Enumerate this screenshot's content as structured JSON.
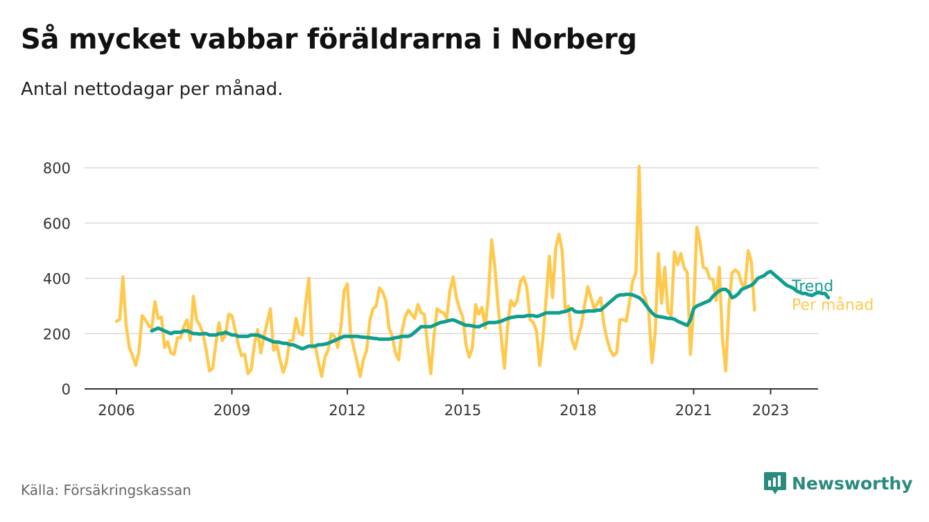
{
  "title": "Så mycket vabbar föräldrarna i Norberg",
  "subtitle": "Antal nettodagar per månad.",
  "source": "Källa: Försäkringskassan",
  "brand": {
    "name": "Newsworthy",
    "icon": "newsworthy-logo-icon",
    "color": "#2a8a7e"
  },
  "colors": {
    "trend": "#0f9e8e",
    "monthly": "#ffc94d",
    "grid": "#d9d9d9",
    "axis": "#333333"
  },
  "chart_data": {
    "type": "line",
    "xlabel": "",
    "ylabel": "",
    "ylim": [
      0,
      800
    ],
    "xlim": [
      "2006-01",
      "2023-06"
    ],
    "y_ticks": [
      0,
      200,
      400,
      600,
      800
    ],
    "x_ticks": [
      "2006",
      "2009",
      "2012",
      "2015",
      "2018",
      "2021",
      "2023"
    ],
    "grid": true,
    "legend": "inline-right",
    "series": [
      {
        "name": "Per månad",
        "label": "Per månad",
        "color": "#ffc94d",
        "start": "2006-01",
        "values": [
          245,
          250,
          405,
          230,
          150,
          120,
          85,
          135,
          265,
          250,
          230,
          220,
          315,
          255,
          260,
          150,
          170,
          130,
          125,
          185,
          185,
          225,
          250,
          175,
          335,
          250,
          230,
          200,
          140,
          65,
          75,
          165,
          240,
          175,
          195,
          270,
          265,
          215,
          160,
          120,
          125,
          55,
          70,
          160,
          215,
          130,
          190,
          240,
          290,
          140,
          160,
          105,
          60,
          95,
          175,
          175,
          255,
          205,
          195,
          310,
          400,
          150,
          155,
          95,
          45,
          115,
          140,
          200,
          190,
          150,
          225,
          355,
          380,
          200,
          150,
          100,
          45,
          105,
          140,
          245,
          290,
          300,
          365,
          350,
          320,
          220,
          190,
          130,
          105,
          205,
          260,
          285,
          270,
          255,
          305,
          275,
          270,
          160,
          55,
          190,
          290,
          280,
          275,
          255,
          355,
          405,
          330,
          290,
          260,
          160,
          115,
          150,
          305,
          270,
          295,
          220,
          340,
          540,
          440,
          300,
          190,
          75,
          230,
          320,
          300,
          320,
          390,
          405,
          365,
          250,
          240,
          210,
          85,
          180,
          330,
          480,
          330,
          510,
          560,
          500,
          280,
          300,
          180,
          145,
          190,
          230,
          305,
          370,
          330,
          290,
          310,
          330,
          235,
          180,
          140,
          120,
          130,
          250,
          250,
          245,
          315,
          390,
          420,
          805,
          350,
          325,
          280,
          95,
          200,
          490,
          310,
          440,
          280,
          265,
          495,
          450,
          490,
          440,
          420,
          125,
          290,
          585,
          530,
          440,
          435,
          400,
          395,
          320,
          440,
          180,
          65,
          300,
          420,
          430,
          420,
          380,
          365,
          500,
          460,
          285
        ]
      },
      {
        "name": "Trend",
        "label": "Trend",
        "color": "#0f9e8e",
        "start": "2006-12",
        "values": [
          210,
          215,
          220,
          215,
          210,
          205,
          200,
          205,
          205,
          205,
          210,
          210,
          205,
          200,
          200,
          198,
          200,
          200,
          195,
          195,
          195,
          200,
          200,
          205,
          200,
          195,
          195,
          190,
          190,
          190,
          190,
          195,
          195,
          195,
          190,
          185,
          180,
          175,
          170,
          170,
          168,
          165,
          165,
          160,
          160,
          155,
          150,
          145,
          150,
          155,
          155,
          155,
          160,
          160,
          162,
          165,
          170,
          175,
          180,
          185,
          190,
          190,
          190,
          190,
          190,
          188,
          187,
          186,
          185,
          183,
          182,
          180,
          180,
          180,
          180,
          182,
          185,
          187,
          190,
          190,
          190,
          195,
          205,
          215,
          225,
          225,
          225,
          225,
          230,
          235,
          240,
          242,
          245,
          248,
          250,
          245,
          240,
          235,
          230,
          230,
          228,
          225,
          225,
          230,
          235,
          240,
          240,
          240,
          242,
          245,
          250,
          255,
          258,
          260,
          262,
          262,
          262,
          265,
          265,
          265,
          262,
          265,
          270,
          275,
          275,
          275,
          275,
          275,
          278,
          280,
          285,
          290,
          280,
          278,
          278,
          280,
          282,
          282,
          282,
          285,
          285,
          295,
          305,
          315,
          325,
          335,
          340,
          340,
          342,
          342,
          340,
          335,
          330,
          320,
          305,
          290,
          275,
          265,
          262,
          260,
          258,
          255,
          255,
          252,
          245,
          240,
          235,
          230,
          250,
          290,
          300,
          305,
          310,
          315,
          320,
          335,
          345,
          355,
          360,
          360,
          350,
          330,
          335,
          345,
          360,
          365,
          370,
          375,
          385,
          400,
          405,
          410,
          420,
          425,
          415,
          405,
          395,
          385,
          375,
          370,
          365,
          355,
          350,
          345,
          345,
          340,
          338,
          345,
          350,
          345,
          345,
          330
        ]
      }
    ]
  }
}
